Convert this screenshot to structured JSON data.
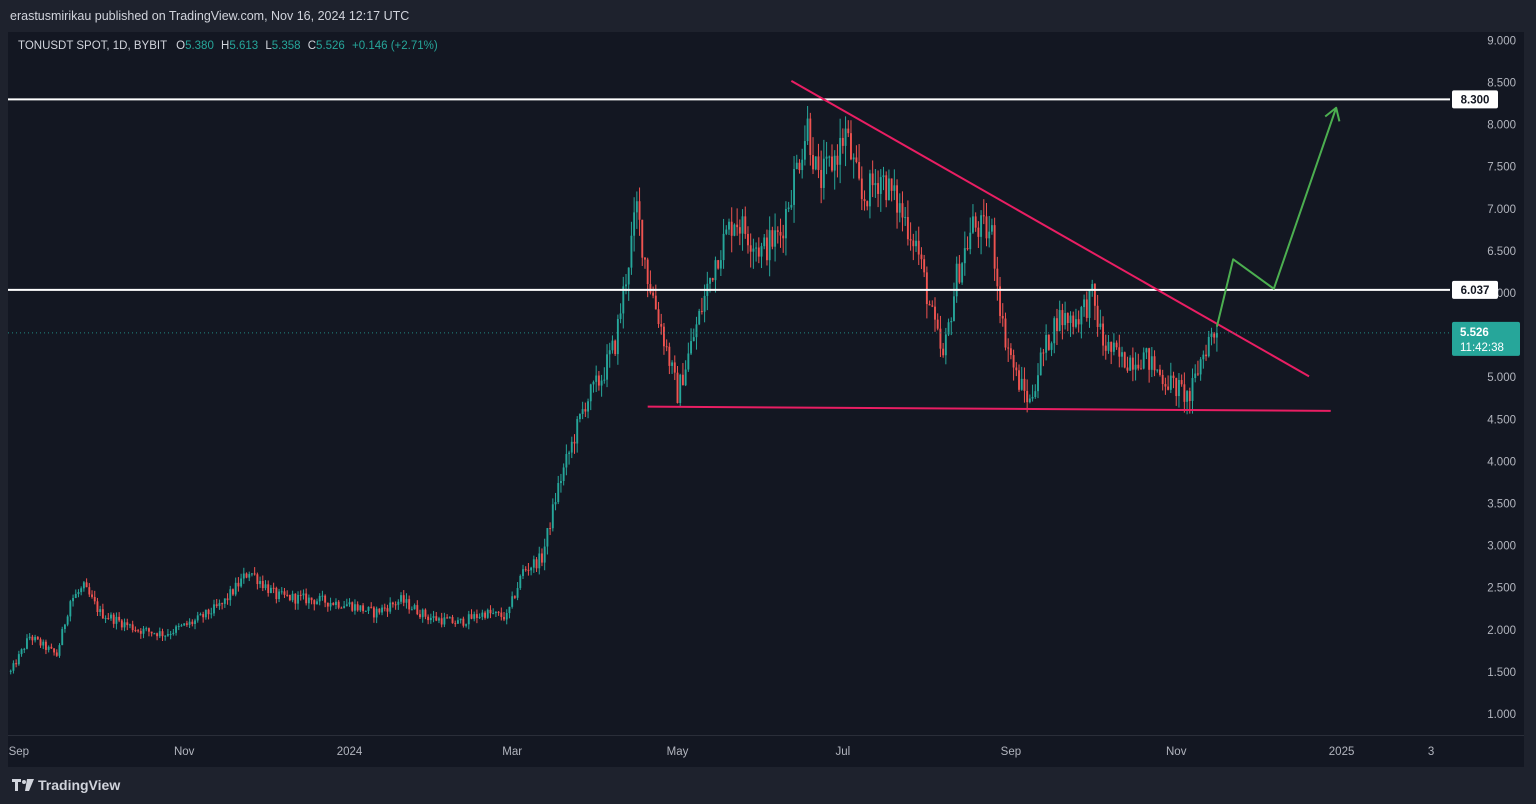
{
  "header": {
    "publisher_line": "erastusmirikau published on TradingView.com, Nov 16, 2024 12:17 UTC"
  },
  "legend": {
    "symbol": "TONUSDT SPOT, 1D, BYBIT",
    "open_label": "O",
    "open": "5.380",
    "high_label": "H",
    "high": "5.613",
    "low_label": "L",
    "low": "5.358",
    "close_label": "C",
    "close": "5.526",
    "change": "+0.146 (+2.71%)"
  },
  "footer": {
    "brand": "TradingView",
    "logo_icon": "tradingview-logo-icon"
  },
  "chart_data": {
    "type": "candlestick",
    "x_range": [
      "2023-08-28",
      "2025-02-10"
    ],
    "y_range": [
      0.75,
      9.1
    ],
    "y_ticks": [
      "9.000",
      "8.500",
      "8.000",
      "7.500",
      "7.000",
      "6.500",
      "6.000",
      "5.500",
      "5.000",
      "4.500",
      "4.000",
      "3.500",
      "3.000",
      "2.500",
      "2.000",
      "1.500",
      "1.000"
    ],
    "x_ticks": [
      {
        "date": "2023-09-01",
        "label": "Sep"
      },
      {
        "date": "2023-11-01",
        "label": "Nov"
      },
      {
        "date": "2024-01-01",
        "label": "2024"
      },
      {
        "date": "2024-03-01",
        "label": "Mar"
      },
      {
        "date": "2024-05-01",
        "label": "May"
      },
      {
        "date": "2024-07-01",
        "label": "Jul"
      },
      {
        "date": "2024-09-01",
        "label": "Sep"
      },
      {
        "date": "2024-11-01",
        "label": "Nov"
      },
      {
        "date": "2025-01-01",
        "label": "2025"
      },
      {
        "date": "2025-02-03",
        "label": "3"
      }
    ],
    "up_color": "#26a69a",
    "down_color": "#ef5350",
    "price_path": [
      [
        "2023-08-29",
        1.5
      ],
      [
        "2023-09-05",
        1.92
      ],
      [
        "2023-09-15",
        1.7
      ],
      [
        "2023-09-20",
        2.35
      ],
      [
        "2023-09-25",
        2.5
      ],
      [
        "2023-10-01",
        2.2
      ],
      [
        "2023-10-15",
        2.0
      ],
      [
        "2023-10-25",
        1.95
      ],
      [
        "2023-11-05",
        2.1
      ],
      [
        "2023-11-15",
        2.3
      ],
      [
        "2023-11-25",
        2.7
      ],
      [
        "2023-12-05",
        2.4
      ],
      [
        "2023-12-20",
        2.35
      ],
      [
        "2024-01-01",
        2.3
      ],
      [
        "2024-01-10",
        2.2
      ],
      [
        "2024-01-20",
        2.35
      ],
      [
        "2024-01-30",
        2.15
      ],
      [
        "2024-02-10",
        2.08
      ],
      [
        "2024-02-20",
        2.2
      ],
      [
        "2024-02-28",
        2.15
      ],
      [
        "2024-03-05",
        2.7
      ],
      [
        "2024-03-12",
        2.85
      ],
      [
        "2024-03-18",
        3.7
      ],
      [
        "2024-03-22",
        4.1
      ],
      [
        "2024-03-28",
        4.7
      ],
      [
        "2024-04-03",
        5.0
      ],
      [
        "2024-04-08",
        5.4
      ],
      [
        "2024-04-12",
        6.2
      ],
      [
        "2024-04-16",
        7.0
      ],
      [
        "2024-04-20",
        6.2
      ],
      [
        "2024-04-25",
        5.6
      ],
      [
        "2024-05-01",
        4.8
      ],
      [
        "2024-05-08",
        5.6
      ],
      [
        "2024-05-15",
        6.4
      ],
      [
        "2024-05-22",
        6.9
      ],
      [
        "2024-06-01",
        6.5
      ],
      [
        "2024-06-08",
        6.7
      ],
      [
        "2024-06-14",
        7.5
      ],
      [
        "2024-06-18",
        8.0
      ],
      [
        "2024-06-22",
        7.3
      ],
      [
        "2024-06-28",
        7.6
      ],
      [
        "2024-07-02",
        7.9
      ],
      [
        "2024-07-08",
        7.1
      ],
      [
        "2024-07-15",
        7.4
      ],
      [
        "2024-07-22",
        7.0
      ],
      [
        "2024-07-28",
        6.6
      ],
      [
        "2024-08-03",
        5.7
      ],
      [
        "2024-08-07",
        5.2
      ],
      [
        "2024-08-12",
        6.2
      ],
      [
        "2024-08-18",
        6.8
      ],
      [
        "2024-08-25",
        6.7
      ],
      [
        "2024-08-29",
        5.6
      ],
      [
        "2024-09-03",
        5.0
      ],
      [
        "2024-09-08",
        4.7
      ],
      [
        "2024-09-12",
        5.2
      ],
      [
        "2024-09-18",
        5.7
      ],
      [
        "2024-09-25",
        5.7
      ],
      [
        "2024-10-01",
        5.95
      ],
      [
        "2024-10-05",
        5.4
      ],
      [
        "2024-10-12",
        5.2
      ],
      [
        "2024-10-20",
        5.25
      ],
      [
        "2024-10-27",
        5.0
      ],
      [
        "2024-11-02",
        4.85
      ],
      [
        "2024-11-06",
        4.75
      ],
      [
        "2024-11-10",
        5.2
      ],
      [
        "2024-11-13",
        5.45
      ],
      [
        "2024-11-16",
        5.53
      ]
    ],
    "horizontal_levels": [
      {
        "value": 8.3,
        "label": "8.300",
        "color": "#ffffff"
      },
      {
        "value": 6.037,
        "label": "6.037",
        "color": "#ffffff"
      }
    ],
    "trendlines": [
      {
        "name": "descending-resistance",
        "color": "#e91e63",
        "from": [
          "2024-06-12",
          8.52
        ],
        "to": [
          "2024-12-20",
          5.01
        ]
      },
      {
        "name": "horizontal-support",
        "color": "#e91e63",
        "from": [
          "2024-04-20",
          4.65
        ],
        "to": [
          "2024-12-28",
          4.6
        ]
      }
    ],
    "projection": {
      "color": "#4caf50",
      "points": [
        [
          "2024-11-16",
          5.6
        ],
        [
          "2024-11-22",
          6.4
        ],
        [
          "2024-12-07",
          6.05
        ],
        [
          "2024-12-30",
          8.2
        ]
      ]
    },
    "last_price": {
      "value": 5.526,
      "label": "5.526",
      "countdown": "11:42:38",
      "color": "#26a69a"
    }
  }
}
